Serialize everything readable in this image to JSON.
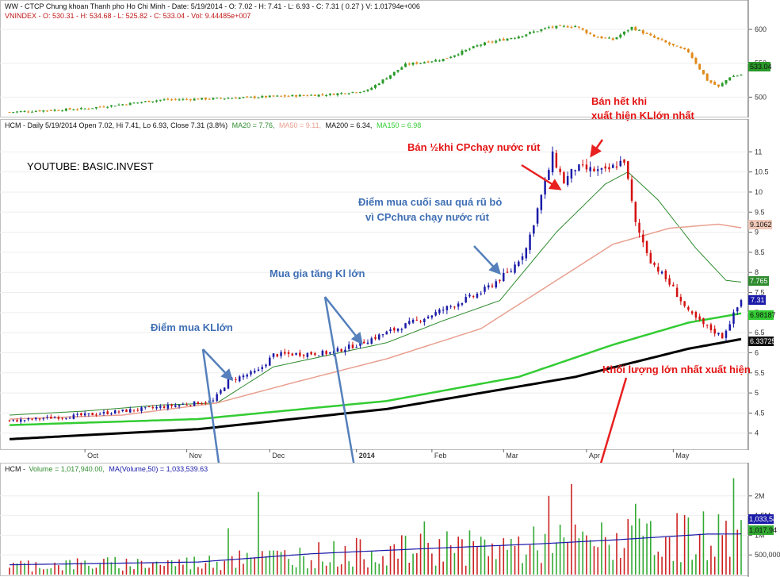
{
  "colors": {
    "up": "#1a1aa8",
    "down": "#d41010",
    "vol_up": "#33aa33",
    "vol_down": "#cc2222",
    "ma20": "#2e8b2e",
    "ma50": "#e8a090",
    "ma200": "#000000",
    "ma150": "#33cc33",
    "vol_ma": "#1a1aa8",
    "annot_red": "#e41414",
    "annot_blue": "#3f6fb4",
    "arrow_blue": "#5580bb",
    "arrow_red": "#e82020",
    "vnindex_up": "#2a9a2a",
    "vnindex_down": "#e08a1a"
  },
  "panel1": {
    "title_line1": "WW - CTCP Chung khoan Thanh pho Ho Chi Minh - Date: 5/19/2014 - O: 7.02 - H: 7.41 - L: 6.93 - C: 7.31 ( 0.27 ) V: 1.01794e+006",
    "title_line2": "VNINDEX - O: 530.31 - H: 534.68 - L: 525.82 - C: 533.04 - Vol: 9.44485e+007",
    "last_value_tag": "533.04"
  },
  "panel2": {
    "header": {
      "title": "HCM - Daily 5/19/2014 Open 7.02, Hi 7.41, Lo 6.93, Close 7.31 (3.8%)",
      "ma20": "MA20 = 7.76,",
      "ma50": "MA50 = 9.11,",
      "ma200": "MA200 = 6.34,",
      "ma150": "MA150 = 6.98"
    },
    "watermark": "YOUTUBE: BASIC.INVEST",
    "tags": {
      "ma50": "9.1062",
      "ma20": "7.765",
      "close": "7.31",
      "ma150": "6.98187",
      "ma200": "6.33725"
    },
    "month_labels": [
      "Oct",
      "Nov",
      "Dec",
      "2014",
      "Feb",
      "Mar",
      "Apr",
      "May"
    ]
  },
  "panel3": {
    "header": {
      "title": "HCM - ",
      "volume": "Volume = 1,017,940.00,",
      "ma": "MA(Volume,50) = 1,033,539.63"
    },
    "tags": {
      "ma": "1,033,54",
      "vol": "1,017,94"
    }
  },
  "annotations": {
    "diem_mua": "Điểm mua KLlớn",
    "mua_gia_tang": "Mua gia tăng Kl lớn",
    "diem_mua_cuoi_1": "Điểm mua cuối sau quá rũ bỏ",
    "diem_mua_cuoi_2": "vì CPchưa chạy nước rút",
    "ban_nua": "Bán ½khi CPchạy nước rút",
    "ban_het_1": "Bán hết khi",
    "ban_het_2": "xuất hiện KLlớn nhất",
    "kl_lon_nhat": "Khối lượng lớn nhất xuất hiện"
  },
  "chart_data": [
    {
      "type": "candlestick",
      "title": "VNINDEX",
      "ylim": [
        470,
        620
      ],
      "yticks": [
        500,
        550,
        600
      ],
      "anchors": [
        [
          0,
          478
        ],
        [
          20,
          483
        ],
        [
          40,
          496
        ],
        [
          55,
          498
        ],
        [
          70,
          501
        ],
        [
          85,
          504
        ],
        [
          95,
          510
        ],
        [
          105,
          548
        ],
        [
          115,
          556
        ],
        [
          125,
          578
        ],
        [
          135,
          590
        ],
        [
          143,
          603
        ],
        [
          150,
          605
        ],
        [
          155,
          590
        ],
        [
          160,
          585
        ],
        [
          165,
          603
        ],
        [
          170,
          590
        ],
        [
          175,
          578
        ],
        [
          180,
          567
        ],
        [
          185,
          525
        ],
        [
          188,
          515
        ],
        [
          191,
          530
        ],
        [
          194,
          533
        ]
      ]
    },
    {
      "type": "candlestick",
      "title": "HCM - Daily",
      "ylim": [
        3.6,
        11.5
      ],
      "yticks": [
        4.0,
        4.5,
        5.0,
        5.5,
        6.0,
        6.5,
        7.0,
        7.5,
        8.0,
        8.5,
        9.0,
        9.5,
        10.0,
        10.5,
        11.0
      ],
      "anchors": [
        [
          0,
          4.3
        ],
        [
          20,
          4.45
        ],
        [
          40,
          4.65
        ],
        [
          54,
          4.8
        ],
        [
          58,
          5.3
        ],
        [
          66,
          5.55
        ],
        [
          70,
          5.95
        ],
        [
          85,
          6.0
        ],
        [
          92,
          6.2
        ],
        [
          100,
          6.5
        ],
        [
          112,
          6.95
        ],
        [
          125,
          7.5
        ],
        [
          133,
          8.05
        ],
        [
          137,
          8.6
        ],
        [
          141,
          9.9
        ],
        [
          144,
          10.9
        ],
        [
          147,
          10.25
        ],
        [
          150,
          10.6
        ],
        [
          158,
          10.5
        ],
        [
          163,
          10.8
        ],
        [
          166,
          9.2
        ],
        [
          170,
          8.3
        ],
        [
          176,
          7.6
        ],
        [
          180,
          7.0
        ],
        [
          184,
          6.7
        ],
        [
          189,
          6.4
        ],
        [
          194,
          7.31
        ]
      ],
      "moving_averages": {
        "MA20": [
          [
            0,
            4.45
          ],
          [
            20,
            4.55
          ],
          [
            40,
            4.7
          ],
          [
            55,
            4.75
          ],
          [
            70,
            5.65
          ],
          [
            85,
            5.95
          ],
          [
            100,
            6.25
          ],
          [
            115,
            6.8
          ],
          [
            130,
            7.3
          ],
          [
            145,
            9.0
          ],
          [
            158,
            10.2
          ],
          [
            164,
            10.5
          ],
          [
            172,
            9.8
          ],
          [
            182,
            8.6
          ],
          [
            190,
            7.8
          ],
          [
            194,
            7.76
          ]
        ],
        "MA50": [
          [
            0,
            4.35
          ],
          [
            30,
            4.45
          ],
          [
            55,
            4.75
          ],
          [
            75,
            5.25
          ],
          [
            100,
            5.85
          ],
          [
            125,
            6.6
          ],
          [
            145,
            7.8
          ],
          [
            160,
            8.7
          ],
          [
            175,
            9.1
          ],
          [
            188,
            9.2
          ],
          [
            194,
            9.11
          ]
        ],
        "MA200": [
          [
            0,
            3.85
          ],
          [
            50,
            4.1
          ],
          [
            100,
            4.6
          ],
          [
            150,
            5.4
          ],
          [
            180,
            6.1
          ],
          [
            194,
            6.34
          ]
        ],
        "MA150": [
          [
            0,
            4.2
          ],
          [
            50,
            4.35
          ],
          [
            100,
            4.8
          ],
          [
            135,
            5.4
          ],
          [
            160,
            6.2
          ],
          [
            180,
            6.75
          ],
          [
            194,
            6.98
          ]
        ]
      }
    },
    {
      "type": "bar",
      "title": "Volume",
      "ylim": [
        0,
        2500000
      ],
      "yticks": [
        500000,
        1000000,
        1500000,
        2000000
      ],
      "ytick_labels": [
        "500,000",
        "1M",
        "1.5M",
        "2M"
      ],
      "spikes": [
        [
          58,
          1180000
        ],
        [
          66,
          2100000
        ],
        [
          110,
          1350000
        ],
        [
          116,
          1100000
        ],
        [
          143,
          2000000
        ],
        [
          149,
          2300000
        ],
        [
          166,
          1800000
        ],
        [
          192,
          2450000
        ]
      ],
      "volume_ma50": [
        [
          0,
          250000
        ],
        [
          50,
          320000
        ],
        [
          80,
          530000
        ],
        [
          110,
          660000
        ],
        [
          140,
          780000
        ],
        [
          160,
          880000
        ],
        [
          185,
          1030000
        ],
        [
          194,
          1033540
        ]
      ]
    }
  ]
}
